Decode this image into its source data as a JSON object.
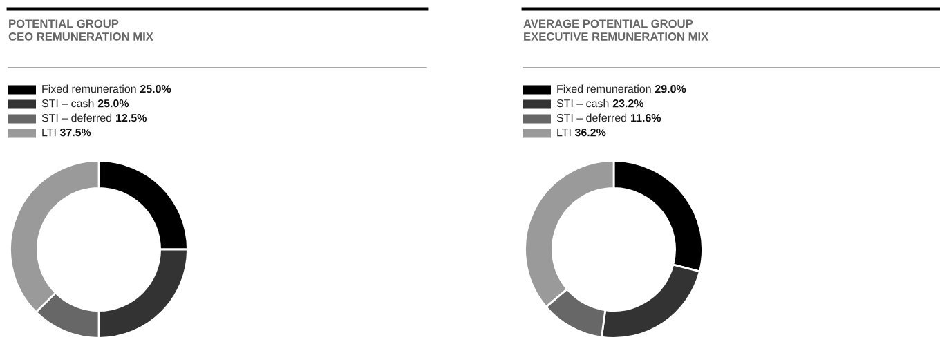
{
  "chart_data": [
    {
      "type": "donut",
      "title": "POTENTIAL GROUP\nCEO REMUNERATION MIX",
      "categories": [
        "Fixed remuneration",
        "STI – cash",
        "STI – deferred",
        "LTI"
      ],
      "values": [
        25.0,
        25.0,
        12.5,
        37.5
      ],
      "value_labels": [
        "25.0%",
        "25.0%",
        "12.5%",
        "37.5%"
      ],
      "colors": [
        "#000000",
        "#333333",
        "#676767",
        "#9a9a9a"
      ],
      "legend": "top left"
    },
    {
      "type": "donut",
      "title": "AVERAGE POTENTIAL GROUP\nEXECUTIVE REMUNERATION MIX",
      "categories": [
        "Fixed remuneration",
        "STI – cash",
        "STI – deferred",
        "LTI"
      ],
      "values": [
        29.0,
        23.2,
        11.6,
        36.2
      ],
      "value_labels": [
        "29.0%",
        "23.2%",
        "11.6%",
        "36.2%"
      ],
      "colors": [
        "#000000",
        "#333333",
        "#676767",
        "#9a9a9a"
      ],
      "legend": "top left"
    }
  ]
}
